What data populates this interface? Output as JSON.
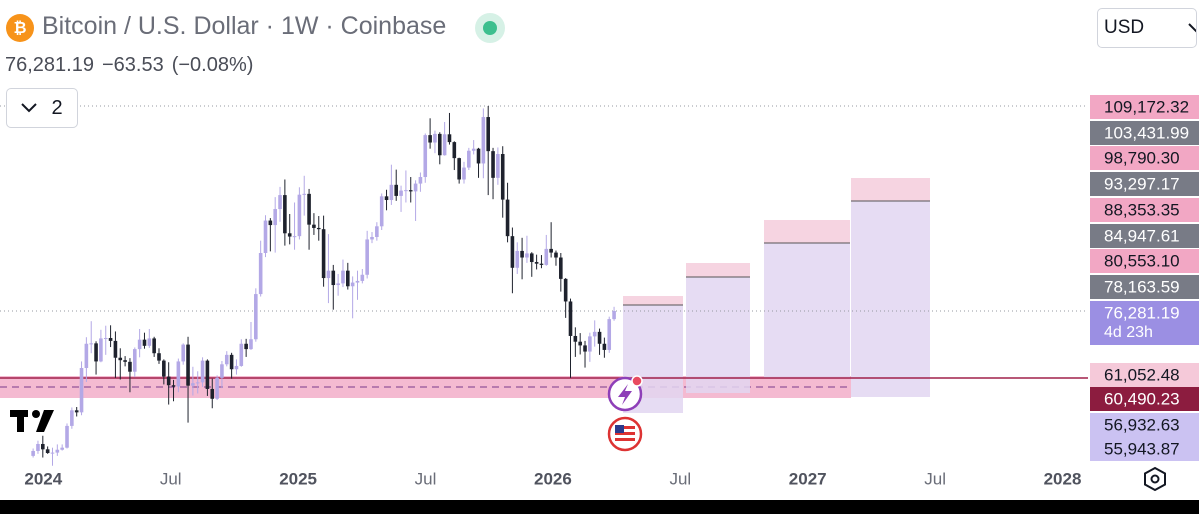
{
  "header": {
    "title": "Bitcoin / U.S. Dollar · 1W · Coinbase",
    "price": "76,281.19",
    "change": "−63.53",
    "change_pct": "(−0.08%)"
  },
  "indicator_toggle": "2",
  "currency": "USD",
  "price_scale": {
    "labels": [
      {
        "text": "109,172.32",
        "color": "#f2a7c4",
        "text_color": "#131722"
      },
      {
        "text": "103,431.99",
        "color": "#787b86",
        "text_color": "#ffffff"
      },
      {
        "text": "98,790.30",
        "color": "#f2a7c4",
        "text_color": "#131722"
      },
      {
        "text": "93,297.17",
        "color": "#787b86",
        "text_color": "#ffffff"
      },
      {
        "text": "88,353.35",
        "color": "#f2a7c4",
        "text_color": "#131722"
      },
      {
        "text": "84,947.61",
        "color": "#787b86",
        "text_color": "#ffffff"
      },
      {
        "text": "80,553.10",
        "color": "#f2a7c4",
        "text_color": "#131722"
      },
      {
        "text": "78,163.59",
        "color": "#787b86",
        "text_color": "#ffffff"
      },
      {
        "text": "76,281.19",
        "color": "#9b8fe3",
        "text_color": "#ffffff"
      },
      {
        "text": "61,052.48",
        "color": "#f5c9d9",
        "text_color": "#131722"
      },
      {
        "text": "60,490.23",
        "color": "#8c1c3f",
        "text_color": "#ffffff"
      },
      {
        "text": "56,932.63",
        "color": "#cbc2f2",
        "text_color": "#131722"
      },
      {
        "text": "55,943.87",
        "color": "#cbc2f2",
        "text_color": "#131722"
      }
    ],
    "countdown": "4d 23h"
  },
  "chart_data": {
    "type": "candlestick",
    "up_color": "#b3a8e6",
    "down_color": "#1e222d",
    "grid": false,
    "xlim": [
      2023.83,
      2028.1
    ],
    "ylim": [
      40000,
      152000
    ],
    "xticks": [
      2024,
      {
        "value": 2024.5,
        "label": "Jul"
      },
      2025,
      {
        "value": 2025.5,
        "label": "Jul"
      },
      2026,
      {
        "value": 2026.5,
        "label": "Jul"
      },
      2027,
      {
        "value": 2027.5,
        "label": "Jul"
      },
      2028
    ],
    "x": [
      2023.96,
      2023.979,
      2023.998,
      2024.017,
      2024.036,
      2024.055,
      2024.074,
      2024.093,
      2024.112,
      2024.131,
      2024.15,
      2024.169,
      2024.188,
      2024.207,
      2024.226,
      2024.245,
      2024.264,
      2024.283,
      2024.302,
      2024.321,
      2024.34,
      2024.359,
      2024.378,
      2024.397,
      2024.416,
      2024.435,
      2024.454,
      2024.473,
      2024.492,
      2024.511,
      2024.53,
      2024.549,
      2024.568,
      2024.587,
      2024.606,
      2024.625,
      2024.644,
      2024.663,
      2024.682,
      2024.701,
      2024.72,
      2024.739,
      2024.758,
      2024.777,
      2024.796,
      2024.815,
      2024.834,
      2024.853,
      2024.872,
      2024.891,
      2024.91,
      2024.929,
      2024.948,
      2024.967,
      2024.986,
      2025.005,
      2025.024,
      2025.043,
      2025.062,
      2025.081,
      2025.1,
      2025.119,
      2025.138,
      2025.157,
      2025.176,
      2025.195,
      2025.214,
      2025.233,
      2025.252,
      2025.271,
      2025.29,
      2025.309,
      2025.328,
      2025.347,
      2025.366,
      2025.385,
      2025.404,
      2025.423,
      2025.442,
      2025.461,
      2025.48,
      2025.499,
      2025.518,
      2025.537,
      2025.556,
      2025.575,
      2025.594,
      2025.613,
      2025.632,
      2025.651,
      2025.67,
      2025.689,
      2025.708,
      2025.727,
      2025.746,
      2025.765,
      2025.784,
      2025.803,
      2025.822,
      2025.841,
      2025.86,
      2025.879,
      2025.898,
      2025.917,
      2025.936,
      2025.955,
      2025.974,
      2025.993,
      2026.012,
      2026.031,
      2026.05,
      2026.069,
      2026.088,
      2026.107,
      2026.126,
      2026.145,
      2026.164,
      2026.183,
      2026.202,
      2026.221,
      2026.24
    ],
    "open": [
      41000,
      42200,
      43900,
      42600,
      41700,
      41800,
      42500,
      43000,
      48300,
      52100,
      51600,
      62400,
      68300,
      68400,
      64000,
      69600,
      69700,
      69000,
      64900,
      64300,
      63900,
      61500,
      67000,
      69300,
      67800,
      69600,
      66000,
      64200,
      60300,
      58200,
      57900,
      64000,
      68100,
      58100,
      58700,
      58900,
      64200,
      57300,
      54900,
      60000,
      63300,
      65600,
      62100,
      62900,
      68300,
      67000,
      69400,
      80400,
      90400,
      98300,
      97200,
      101100,
      104500,
      95200,
      94400,
      94500,
      104600,
      104800,
      97300,
      96500,
      96200,
      84300,
      86100,
      82600,
      83000,
      86100,
      82300,
      83200,
      83600,
      85100,
      93700,
      94300,
      96900,
      104200,
      103300,
      107000,
      104300,
      105600,
      105700,
      105400,
      107300,
      108900,
      119100,
      117300,
      119400,
      114200,
      119300,
      117400,
      113500,
      108300,
      111200,
      115300,
      115800,
      112200,
      123500,
      115200,
      108700,
      114500,
      103400,
      94500,
      86800,
      90900,
      89300,
      90300,
      88200,
      87800,
      87500,
      91400,
      90500,
      89300,
      84100,
      78600,
      70200,
      68800,
      67900,
      66400,
      70100,
      71200,
      68300,
      66800,
      74300
    ],
    "high": [
      42800,
      44700,
      45900,
      43300,
      43000,
      43800,
      43800,
      48900,
      52800,
      52900,
      64000,
      69900,
      73800,
      68900,
      71700,
      72700,
      72800,
      71300,
      67200,
      65300,
      64800,
      67400,
      71900,
      71000,
      71900,
      70000,
      67200,
      64500,
      63800,
      59500,
      64700,
      68400,
      70000,
      62700,
      61600,
      65000,
      64500,
      59800,
      60600,
      64100,
      66500,
      66100,
      64500,
      69400,
      69500,
      73600,
      81800,
      93400,
      99600,
      98900,
      104000,
      106500,
      108300,
      99900,
      102700,
      106400,
      109200,
      106000,
      100100,
      99400,
      99500,
      95000,
      87500,
      85300,
      88800,
      88000,
      84700,
      86100,
      86500,
      95800,
      95500,
      97900,
      104900,
      105800,
      111900,
      110700,
      106800,
      110500,
      108900,
      108100,
      110000,
      119500,
      123200,
      120200,
      119800,
      122300,
      124500,
      117600,
      113600,
      112600,
      116000,
      117900,
      116000,
      125600,
      126200,
      116000,
      116100,
      116400,
      107500,
      96600,
      93000,
      94100,
      94600,
      90600,
      90000,
      89900,
      94800,
      97900,
      91000,
      90400,
      84300,
      79300,
      72300,
      70900,
      69000,
      71000,
      74000,
      72000,
      69800,
      74900,
      77300
    ],
    "low": [
      40600,
      41500,
      40600,
      41500,
      38600,
      41000,
      42300,
      42800,
      47600,
      50600,
      50900,
      59000,
      66000,
      60800,
      63800,
      65600,
      67500,
      60000,
      59600,
      62800,
      56500,
      60200,
      65000,
      67100,
      67300,
      65100,
      63400,
      58400,
      53500,
      54300,
      56500,
      63200,
      49100,
      55700,
      56200,
      57800,
      55600,
      52600,
      54600,
      57500,
      62800,
      59800,
      60800,
      62700,
      65100,
      66800,
      68800,
      79800,
      89400,
      90800,
      90500,
      98000,
      92200,
      92500,
      91200,
      93700,
      99500,
      91200,
      94800,
      93400,
      82200,
      78200,
      76600,
      80000,
      82100,
      81500,
      74500,
      79000,
      83000,
      84200,
      92800,
      93400,
      96000,
      100800,
      102100,
      103100,
      100400,
      102700,
      102700,
      98200,
      105300,
      107500,
      115800,
      114700,
      112000,
      114100,
      116800,
      110600,
      107300,
      107300,
      110600,
      114400,
      108700,
      108600,
      104500,
      103500,
      107000,
      99000,
      93000,
      80600,
      85300,
      84000,
      88000,
      84600,
      86400,
      86700,
      87300,
      89300,
      87300,
      81000,
      74600,
      60000,
      65100,
      65700,
      62500,
      63900,
      67600,
      65600,
      64900,
      66100,
      73900
    ],
    "close": [
      42200,
      43900,
      42600,
      41700,
      41800,
      42500,
      43000,
      48300,
      52100,
      51600,
      62400,
      68300,
      68400,
      64000,
      69600,
      69700,
      69000,
      64900,
      64300,
      63900,
      61500,
      67000,
      69300,
      67800,
      69600,
      66000,
      64200,
      60300,
      58200,
      57900,
      64000,
      68100,
      58100,
      58700,
      58900,
      64200,
      57300,
      54900,
      60000,
      63300,
      65600,
      62100,
      62900,
      68300,
      67000,
      69400,
      80400,
      90400,
      98300,
      97200,
      101100,
      104500,
      95200,
      94400,
      94500,
      104600,
      104800,
      97300,
      96500,
      96200,
      84300,
      86100,
      82600,
      83000,
      86100,
      82300,
      83200,
      83600,
      85100,
      93700,
      94300,
      96900,
      104200,
      103300,
      107000,
      104300,
      105600,
      105700,
      105400,
      107300,
      108900,
      119100,
      117300,
      119400,
      114200,
      119300,
      117400,
      113500,
      108300,
      111200,
      115300,
      115800,
      112200,
      123500,
      115200,
      108700,
      114500,
      103400,
      94500,
      86800,
      90900,
      89300,
      90300,
      88200,
      87800,
      87500,
      91400,
      90500,
      89300,
      84100,
      78600,
      70200,
      68800,
      67900,
      66400,
      70100,
      71200,
      68300,
      66800,
      74300,
      76281.19
    ]
  }
}
